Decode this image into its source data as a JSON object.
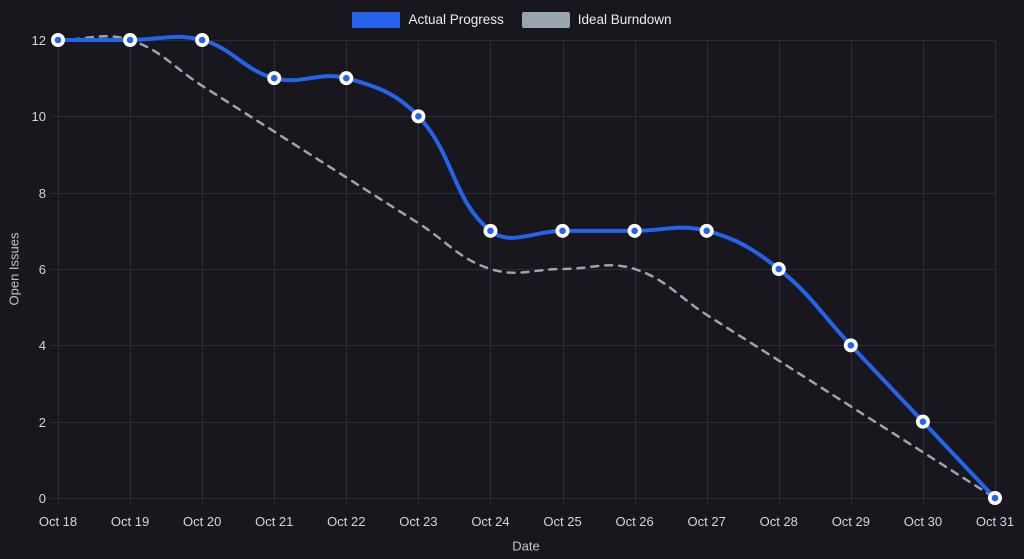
{
  "colors": {
    "background": "#17171d",
    "grid": "#2c2c34",
    "actual": "#2563eb",
    "ideal": "#9aa5b2",
    "tick_text": "#d6d6da",
    "axis_title_text": "#c3c3c9",
    "legend_text": "#ededf0",
    "point_fill": "#ffffff"
  },
  "legend": {
    "items": [
      {
        "label": "Actual Progress"
      },
      {
        "label": "Ideal Burndown"
      }
    ]
  },
  "chart_data": {
    "type": "line",
    "title": "",
    "xlabel": "Date",
    "ylabel": "Open Issues",
    "categories": [
      "Oct 18",
      "Oct 19",
      "Oct 20",
      "Oct 21",
      "Oct 22",
      "Oct 23",
      "Oct 24",
      "Oct 25",
      "Oct 26",
      "Oct 27",
      "Oct 28",
      "Oct 29",
      "Oct 30",
      "Oct 31"
    ],
    "series": [
      {
        "name": "Actual Progress",
        "color": "#2563eb",
        "line_style": "solid",
        "show_points": true,
        "values": [
          12,
          12,
          12,
          11,
          11,
          10,
          7,
          7,
          7,
          7,
          6,
          4,
          2,
          0
        ]
      },
      {
        "name": "Ideal Burndown",
        "color": "#9aa5b2",
        "line_style": "dashed",
        "show_points": false,
        "values": [
          12,
          12,
          10.8,
          9.6,
          8.4,
          7.2,
          6,
          6,
          6,
          4.8,
          3.6,
          2.4,
          1.2,
          0
        ]
      }
    ],
    "ylim": [
      0,
      12
    ],
    "yticks": [
      0,
      2,
      4,
      6,
      8,
      10,
      12
    ],
    "grid": true,
    "legend_position": "top"
  }
}
